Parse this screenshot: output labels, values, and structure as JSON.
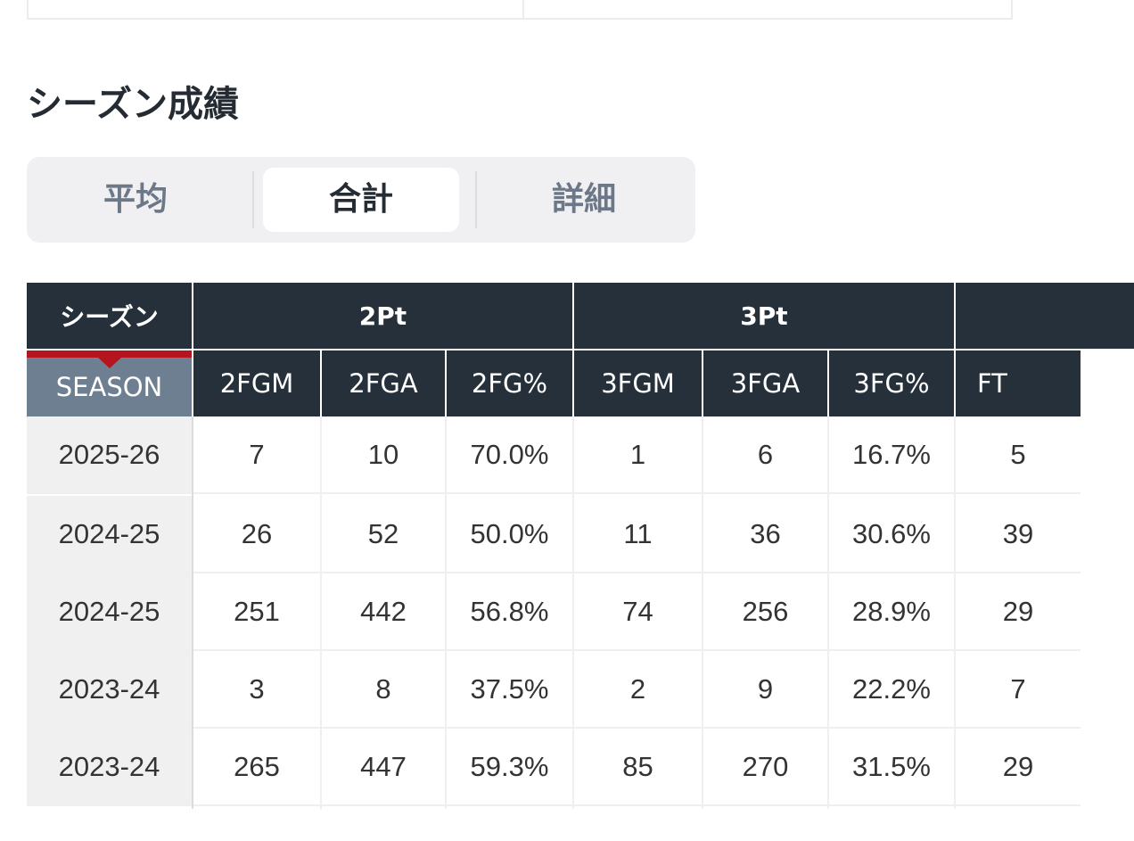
{
  "section_title": "シーズン成績",
  "tabs": [
    {
      "label": "平均",
      "active": false
    },
    {
      "label": "合計",
      "active": true
    },
    {
      "label": "詳細",
      "active": false
    }
  ],
  "table": {
    "group_headers": [
      "シーズン",
      "2Pt",
      "3Pt",
      ""
    ],
    "season_label": "SEASON",
    "columns": [
      "2FGM",
      "2FGA",
      "2FG%",
      "3FGM",
      "3FGA",
      "3FG%",
      "FT"
    ],
    "rows": [
      {
        "season": "2025-26",
        "values": [
          "7",
          "10",
          "70.0%",
          "1",
          "6",
          "16.7%",
          "5"
        ]
      },
      {
        "season": "2024-25",
        "values": [
          "26",
          "52",
          "50.0%",
          "11",
          "36",
          "30.6%",
          "39"
        ]
      },
      {
        "season": "2024-25",
        "values": [
          "251",
          "442",
          "56.8%",
          "74",
          "256",
          "28.9%",
          "29"
        ]
      },
      {
        "season": "2023-24",
        "values": [
          "3",
          "8",
          "37.5%",
          "2",
          "9",
          "22.2%",
          "7"
        ]
      },
      {
        "season": "2023-24",
        "values": [
          "265",
          "447",
          "59.3%",
          "85",
          "270",
          "31.5%",
          "29"
        ]
      }
    ]
  },
  "colors": {
    "header": "#26303b",
    "season_header": "#6f7f92",
    "accent_red": "#b5151f"
  }
}
